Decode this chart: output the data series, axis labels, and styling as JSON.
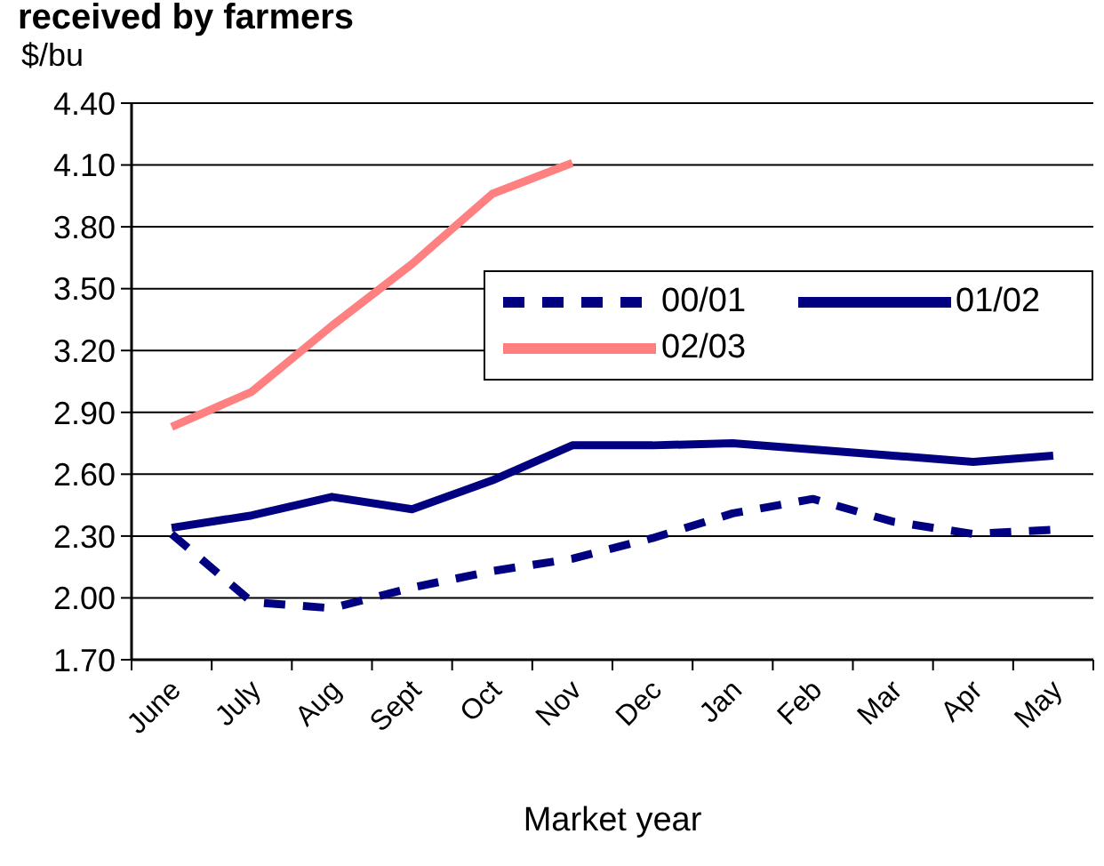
{
  "chart_data": {
    "type": "line",
    "title": "received by farmers",
    "xlabel": "Market year",
    "ylabel": "$/bu",
    "categories": [
      "June",
      "July",
      "Aug",
      "Sept",
      "Oct",
      "Nov",
      "Dec",
      "Jan",
      "Feb",
      "Mar",
      "Apr",
      "May"
    ],
    "series": [
      {
        "name": "00/01",
        "color": "#000080",
        "line_style": "dashed",
        "values": [
          2.31,
          1.98,
          1.95,
          2.05,
          2.13,
          2.19,
          2.29,
          2.41,
          2.48,
          2.37,
          2.31,
          2.33
        ]
      },
      {
        "name": "01/02",
        "color": "#000080",
        "values": [
          2.34,
          2.4,
          2.49,
          2.43,
          2.57,
          2.74,
          2.74,
          2.75,
          2.72,
          2.69,
          2.66,
          2.69
        ]
      },
      {
        "name": "02/03",
        "color": "#ff8080",
        "values": [
          2.83,
          3.0,
          3.32,
          3.62,
          3.96,
          4.11,
          null,
          null,
          null,
          null,
          null,
          null
        ]
      }
    ],
    "ylim": [
      1.7,
      4.4
    ],
    "yticks": [
      {
        "value": 1.7,
        "label": "1.70"
      },
      {
        "value": 2.0,
        "label": "2.00"
      },
      {
        "value": 2.3,
        "label": "2.30"
      },
      {
        "value": 2.6,
        "label": "2.60"
      },
      {
        "value": 2.9,
        "label": "2.90"
      },
      {
        "value": 3.2,
        "label": "3.20"
      },
      {
        "value": 3.5,
        "label": "3.50"
      },
      {
        "value": 3.8,
        "label": "3.80"
      },
      {
        "value": 4.1,
        "label": "4.10"
      },
      {
        "value": 4.4,
        "label": "4.40"
      }
    ],
    "grid": "y",
    "legend": "right",
    "line_style": "solid"
  }
}
